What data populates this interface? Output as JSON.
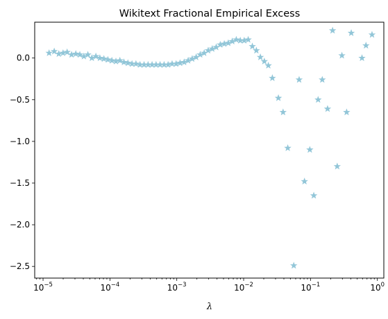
{
  "chart_data": {
    "type": "scatter",
    "title": "Wikitext Fractional Empirical Excess",
    "xlabel": "λ",
    "ylabel": "",
    "xscale": "log",
    "xlim": [
      7.5e-06,
      1.25
    ],
    "ylim": [
      -2.64,
      0.43
    ],
    "grid": false,
    "marker": "star",
    "color": "#92c6d8",
    "x_ticks": [
      {
        "value": 1e-05,
        "base": "10",
        "exp": "−5"
      },
      {
        "value": 0.0001,
        "base": "10",
        "exp": "−4"
      },
      {
        "value": 0.001,
        "base": "10",
        "exp": "−3"
      },
      {
        "value": 0.01,
        "base": "10",
        "exp": "−2"
      },
      {
        "value": 0.1,
        "base": "10",
        "exp": "−1"
      },
      {
        "value": 1,
        "base": "10",
        "exp": "0"
      }
    ],
    "y_ticks": [
      {
        "value": 0.0,
        "label": "0.0"
      },
      {
        "value": -0.5,
        "label": "−0.5"
      },
      {
        "value": -1.0,
        "label": "−1.0"
      },
      {
        "value": -1.5,
        "label": "−1.5"
      },
      {
        "value": -2.0,
        "label": "−2.0"
      },
      {
        "value": -2.5,
        "label": "−2.5"
      }
    ],
    "points": [
      [
        1.23e-05,
        0.06
      ],
      [
        1.47e-05,
        0.08
      ],
      [
        1.72e-05,
        0.05
      ],
      [
        1.99e-05,
        0.06
      ],
      [
        2.29e-05,
        0.07
      ],
      [
        2.67e-05,
        0.04
      ],
      [
        3.09e-05,
        0.05
      ],
      [
        3.55e-05,
        0.04
      ],
      [
        4.08e-05,
        0.02
      ],
      [
        4.68e-05,
        0.04
      ],
      [
        5.37e-05,
        0.0
      ],
      [
        6.17e-05,
        0.02
      ],
      [
        7.08e-05,
        0.0
      ],
      [
        8.13e-05,
        -0.01
      ],
      [
        9.33e-05,
        -0.02
      ],
      [
        0.000107,
        -0.03
      ],
      [
        0.000123,
        -0.04
      ],
      [
        0.000141,
        -0.03
      ],
      [
        0.000162,
        -0.05
      ],
      [
        0.000186,
        -0.06
      ],
      [
        0.000214,
        -0.07
      ],
      [
        0.000245,
        -0.07
      ],
      [
        0.000282,
        -0.08
      ],
      [
        0.000324,
        -0.08
      ],
      [
        0.000372,
        -0.08
      ],
      [
        0.000427,
        -0.08
      ],
      [
        0.00049,
        -0.08
      ],
      [
        0.000562,
        -0.08
      ],
      [
        0.000646,
        -0.08
      ],
      [
        0.000741,
        -0.08
      ],
      [
        0.000851,
        -0.07
      ],
      [
        0.000977,
        -0.07
      ],
      [
        0.00112,
        -0.06
      ],
      [
        0.00129,
        -0.05
      ],
      [
        0.00148,
        -0.03
      ],
      [
        0.0017,
        -0.01
      ],
      [
        0.00195,
        0.01
      ],
      [
        0.00224,
        0.04
      ],
      [
        0.00257,
        0.06
      ],
      [
        0.00295,
        0.09
      ],
      [
        0.00339,
        0.11
      ],
      [
        0.00389,
        0.13
      ],
      [
        0.00447,
        0.16
      ],
      [
        0.00513,
        0.17
      ],
      [
        0.00589,
        0.18
      ],
      [
        0.00676,
        0.2
      ],
      [
        0.00776,
        0.22
      ],
      [
        0.00891,
        0.21
      ],
      [
        0.0102,
        0.21
      ],
      [
        0.0117,
        0.22
      ],
      [
        0.0135,
        0.14
      ],
      [
        0.0155,
        0.09
      ],
      [
        0.0178,
        0.01
      ],
      [
        0.0204,
        -0.04
      ],
      [
        0.0234,
        -0.09
      ],
      [
        0.0269,
        -0.24
      ],
      [
        0.0331,
        -0.48
      ],
      [
        0.0389,
        -0.65
      ],
      [
        0.0457,
        -1.08
      ],
      [
        0.0562,
        -2.49
      ],
      [
        0.0676,
        -0.26
      ],
      [
        0.0813,
        -1.48
      ],
      [
        0.0977,
        -1.1
      ],
      [
        0.112,
        -1.65
      ],
      [
        0.13,
        -0.5
      ],
      [
        0.15,
        -0.26
      ],
      [
        0.18,
        -0.61
      ],
      [
        0.214,
        0.33
      ],
      [
        0.251,
        -1.3
      ],
      [
        0.295,
        0.03
      ],
      [
        0.347,
        -0.65
      ],
      [
        0.407,
        0.3
      ],
      [
        0.589,
        0.0
      ],
      [
        0.676,
        0.15
      ],
      [
        0.832,
        0.28
      ]
    ]
  }
}
